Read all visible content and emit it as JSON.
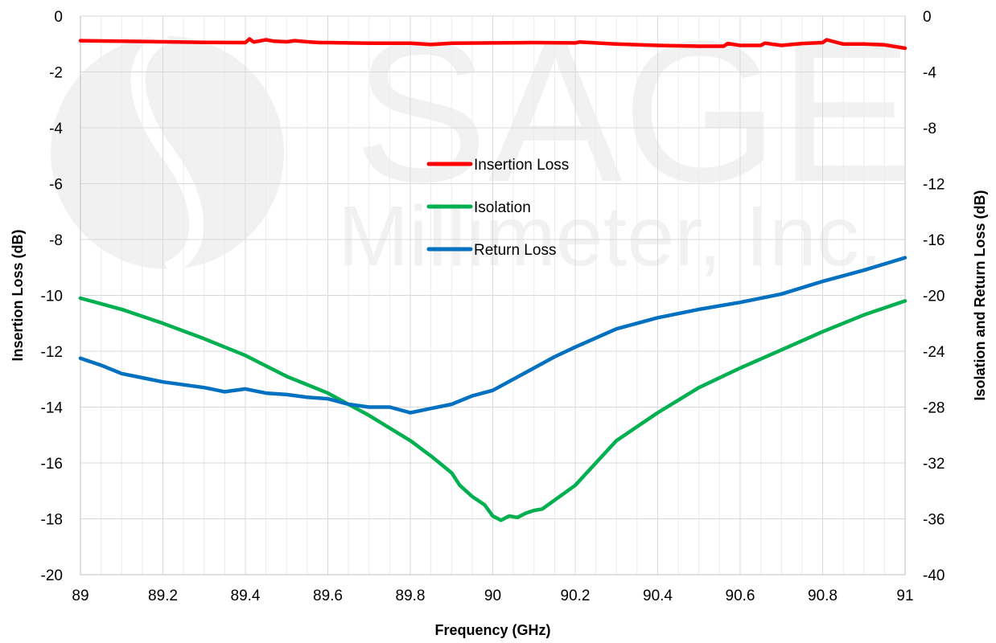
{
  "chart_data": {
    "type": "line",
    "title": "",
    "xlabel": "Frequency (GHz)",
    "ylabel": "Insertion Loss (dB)",
    "y2label": "Isolation and Return Loss (dB)",
    "xlim": [
      89,
      91
    ],
    "ylim": [
      -20,
      0
    ],
    "y2lim": [
      -40,
      0
    ],
    "grid": true,
    "legend_position": "center",
    "x_ticks": [
      "89",
      "89.2",
      "89.4",
      "89.6",
      "89.8",
      "90",
      "90.2",
      "90.4",
      "90.6",
      "90.8",
      "91"
    ],
    "y_ticks": [
      "0",
      "-2",
      "-4",
      "-6",
      "-8",
      "-10",
      "-12",
      "-14",
      "-16",
      "-18",
      "-20"
    ],
    "y2_ticks": [
      "0",
      "-4",
      "-8",
      "-12",
      "-16",
      "-20",
      "-24",
      "-28",
      "-32",
      "-36",
      "-40"
    ],
    "watermark": [
      "SAGE",
      "Millimeter, Inc."
    ],
    "series": [
      {
        "name": "Insertion Loss",
        "axis": "left",
        "color": "#ff0000",
        "x": [
          89.0,
          89.1,
          89.2,
          89.3,
          89.4,
          89.41,
          89.42,
          89.45,
          89.47,
          89.5,
          89.52,
          89.55,
          89.58,
          89.6,
          89.7,
          89.8,
          89.85,
          89.9,
          90.0,
          90.1,
          90.2,
          90.21,
          90.3,
          90.4,
          90.5,
          90.56,
          90.57,
          90.6,
          90.65,
          90.66,
          90.7,
          90.75,
          90.8,
          90.81,
          90.85,
          90.9,
          90.95,
          91.0
        ],
        "values": [
          -0.88,
          -0.9,
          -0.92,
          -0.94,
          -0.95,
          -0.82,
          -0.93,
          -0.85,
          -0.9,
          -0.92,
          -0.88,
          -0.92,
          -0.95,
          -0.95,
          -0.97,
          -0.97,
          -1.02,
          -0.97,
          -0.96,
          -0.95,
          -0.96,
          -0.93,
          -1.0,
          -1.05,
          -1.08,
          -1.08,
          -0.98,
          -1.05,
          -1.05,
          -0.97,
          -1.05,
          -0.98,
          -0.95,
          -0.85,
          -1.0,
          -1.0,
          -1.03,
          -1.15
        ]
      },
      {
        "name": "Isolation",
        "axis": "right",
        "color": "#00b050",
        "x": [
          89.0,
          89.1,
          89.2,
          89.3,
          89.4,
          89.5,
          89.6,
          89.7,
          89.8,
          89.85,
          89.9,
          89.92,
          89.95,
          89.98,
          90.0,
          90.02,
          90.04,
          90.06,
          90.08,
          90.1,
          90.12,
          90.2,
          90.3,
          90.4,
          90.5,
          90.6,
          90.7,
          90.8,
          90.9,
          91.0
        ],
        "values": [
          -20.2,
          -21.0,
          -22.0,
          -23.1,
          -24.3,
          -25.8,
          -27.0,
          -28.6,
          -30.4,
          -31.5,
          -32.7,
          -33.6,
          -34.4,
          -35.0,
          -35.8,
          -36.1,
          -35.8,
          -35.9,
          -35.6,
          -35.4,
          -35.3,
          -33.6,
          -30.4,
          -28.4,
          -26.6,
          -25.2,
          -23.9,
          -22.6,
          -21.4,
          -20.4
        ]
      },
      {
        "name": "Return Loss",
        "axis": "right",
        "color": "#0070c0",
        "x": [
          89.0,
          89.02,
          89.05,
          89.1,
          89.15,
          89.2,
          89.25,
          89.3,
          89.35,
          89.4,
          89.45,
          89.5,
          89.55,
          89.6,
          89.65,
          89.7,
          89.75,
          89.8,
          89.85,
          89.9,
          89.95,
          90.0,
          90.05,
          90.1,
          90.15,
          90.2,
          90.3,
          90.4,
          90.5,
          90.6,
          90.7,
          90.8,
          90.9,
          91.0
        ],
        "values": [
          -24.5,
          -24.7,
          -25.0,
          -25.6,
          -25.9,
          -26.2,
          -26.4,
          -26.6,
          -26.9,
          -26.7,
          -27.0,
          -27.1,
          -27.3,
          -27.4,
          -27.8,
          -28.0,
          -28.0,
          -28.4,
          -28.1,
          -27.8,
          -27.2,
          -26.8,
          -26.0,
          -25.2,
          -24.4,
          -23.7,
          -22.4,
          -21.6,
          -21.0,
          -20.5,
          -19.9,
          -19.0,
          -18.2,
          -17.3
        ]
      }
    ]
  }
}
